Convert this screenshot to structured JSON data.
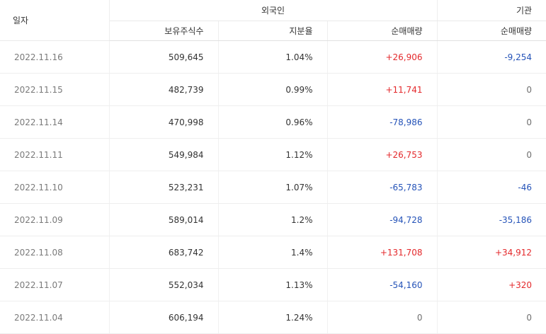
{
  "header": {
    "date": "일자",
    "foreign": "외국인",
    "institution": "기관",
    "holdings": "보유주식수",
    "ratio": "지분율",
    "foreign_net": "순매매량",
    "institution_net": "순매매량"
  },
  "colors": {
    "up": "#e4292c",
    "down": "#2553b8",
    "flat": "#6f6f6f"
  },
  "rows": [
    {
      "date": "2022.11.16",
      "holdings": "509,645",
      "ratio": "1.04%",
      "foreign_net": "+26,906",
      "institution_net": "-9,254"
    },
    {
      "date": "2022.11.15",
      "holdings": "482,739",
      "ratio": "0.99%",
      "foreign_net": "+11,741",
      "institution_net": "0"
    },
    {
      "date": "2022.11.14",
      "holdings": "470,998",
      "ratio": "0.96%",
      "foreign_net": "-78,986",
      "institution_net": "0"
    },
    {
      "date": "2022.11.11",
      "holdings": "549,984",
      "ratio": "1.12%",
      "foreign_net": "+26,753",
      "institution_net": "0"
    },
    {
      "date": "2022.11.10",
      "holdings": "523,231",
      "ratio": "1.07%",
      "foreign_net": "-65,783",
      "institution_net": "-46"
    },
    {
      "date": "2022.11.09",
      "holdings": "589,014",
      "ratio": "1.2%",
      "foreign_net": "-94,728",
      "institution_net": "-35,186"
    },
    {
      "date": "2022.11.08",
      "holdings": "683,742",
      "ratio": "1.4%",
      "foreign_net": "+131,708",
      "institution_net": "+34,912"
    },
    {
      "date": "2022.11.07",
      "holdings": "552,034",
      "ratio": "1.13%",
      "foreign_net": "-54,160",
      "institution_net": "+320"
    },
    {
      "date": "2022.11.04",
      "holdings": "606,194",
      "ratio": "1.24%",
      "foreign_net": "0",
      "institution_net": "0"
    }
  ]
}
